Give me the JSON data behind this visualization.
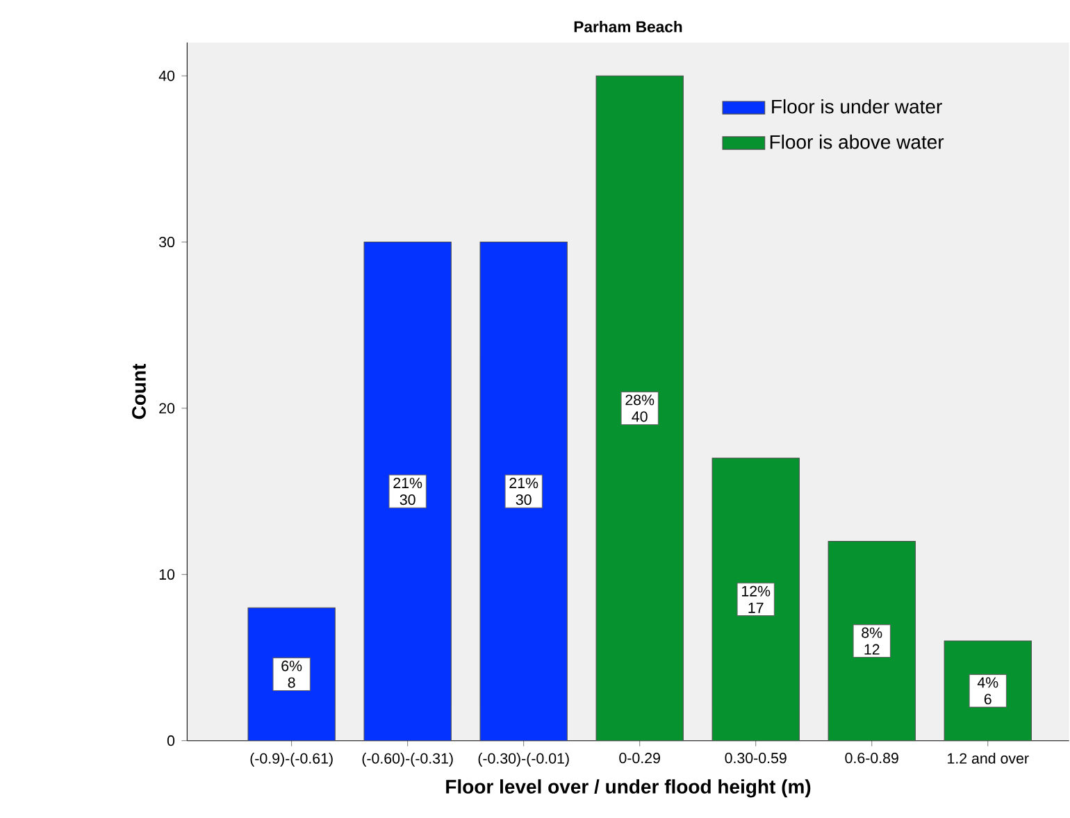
{
  "chart_data": {
    "type": "bar",
    "title": "Parham Beach",
    "xlabel": "Floor level over / under flood height (m)",
    "ylabel": "Count",
    "categories": [
      "(-0.9)-(-0.61)",
      "(-0.60)-(-0.31)",
      "(-0.30)-(-0.01)",
      "0-0.29",
      "0.30-0.59",
      "0.6-0.89",
      "1.2 and over"
    ],
    "series": [
      {
        "name": "Floor is under water",
        "color": "#0433ff",
        "values": [
          8,
          30,
          30,
          null,
          null,
          null,
          null
        ],
        "value_labels": [
          "6% 8",
          "21% 30",
          "21% 30",
          null,
          null,
          null,
          null
        ]
      },
      {
        "name": "Floor is above water",
        "color": "#06922e",
        "values": [
          null,
          null,
          null,
          40,
          17,
          12,
          6
        ],
        "value_labels": [
          null,
          null,
          null,
          "28% 40",
          "12% 17",
          "8% 12",
          "4% 6"
        ]
      }
    ],
    "ylim": [
      0,
      42
    ],
    "yticks": [
      0,
      10,
      20,
      30,
      40
    ],
    "grid": false,
    "legend": "top right"
  }
}
